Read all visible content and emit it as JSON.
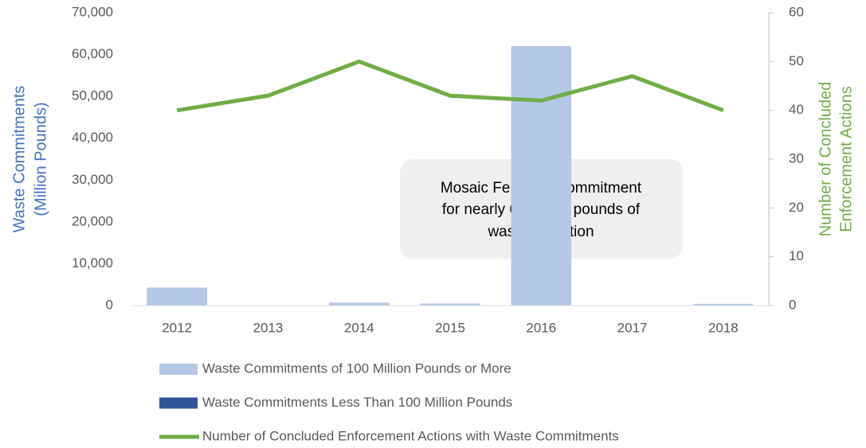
{
  "chart_data": {
    "type": "bar+line",
    "categories": [
      "2012",
      "2013",
      "2014",
      "2015",
      "2016",
      "2017",
      "2018"
    ],
    "series": [
      {
        "name": "Waste Commitments of 100 Million Pounds or More",
        "type": "bar",
        "color": "#b4c7e7",
        "values": [
          4300,
          0,
          700,
          500,
          62000,
          0,
          400
        ]
      },
      {
        "name": "Waste Commitments Less Than 100 Million Pounds",
        "type": "bar",
        "color": "#2f5597",
        "values": [
          0,
          0,
          0,
          0,
          0,
          0,
          0
        ]
      },
      {
        "name": "Number of Concluded Enforcement Actions with Waste Commitments",
        "type": "line",
        "axis": "y2",
        "color": "#70ad47",
        "values": [
          40,
          43,
          50,
          43,
          42,
          47,
          40
        ]
      }
    ],
    "ylabel": [
      "Waste Commitments",
      "(Million Pounds)"
    ],
    "y2label": [
      "Number of Concluded",
      "Enforcement Actions"
    ],
    "ylim": [
      0,
      70000
    ],
    "yticks": [
      0,
      {
        "value": 10000,
        "label": "10,000"
      },
      {
        "value": 20000,
        "label": "20,000"
      },
      {
        "value": 30000,
        "label": "30,000"
      },
      {
        "value": 40000,
        "label": "40,000"
      },
      {
        "value": 50000,
        "label": "50,000"
      },
      {
        "value": 60000,
        "label": "60,000"
      },
      {
        "value": 70000,
        "label": "70,000"
      }
    ],
    "y2lim": [
      0,
      60
    ],
    "y2ticks": [
      0,
      10,
      20,
      30,
      40,
      50,
      60
    ],
    "annotation": [
      "Mosaic Fertilizer: commitment",
      "for nearly 62 billion pounds of",
      "waste reduction"
    ],
    "legend": "bottom"
  }
}
